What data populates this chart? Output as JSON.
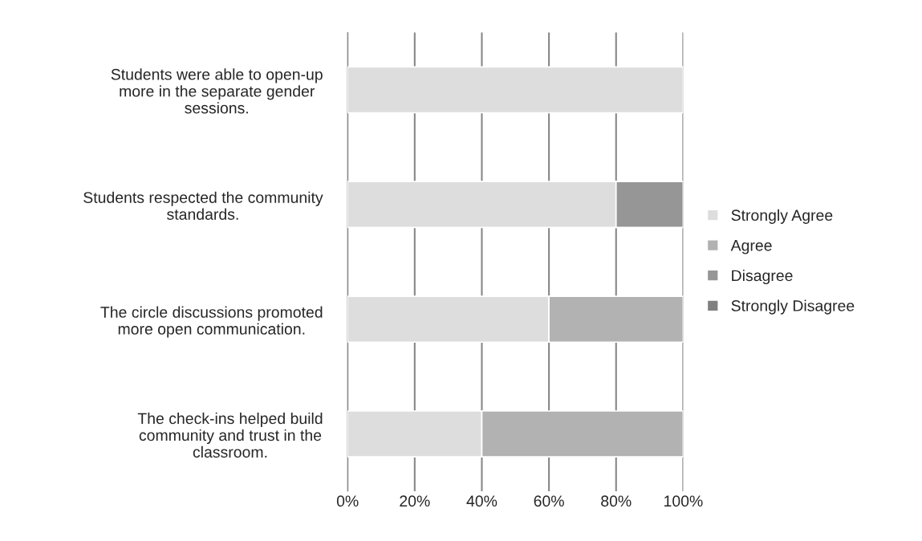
{
  "chart_data": {
    "type": "bar",
    "orientation": "horizontal",
    "stacked": true,
    "categories": [
      "Students were able to open-up more in the separate gender sessions.",
      "Students respected the community standards.",
      "The circle discussions promoted more open communication.",
      "The check-ins helped build community and trust in the classroom."
    ],
    "series": [
      {
        "name": "Strongly Agree",
        "color": "#dddddd",
        "values": [
          100,
          80,
          60,
          40
        ]
      },
      {
        "name": "Agree",
        "color": "#b2b2b2",
        "values": [
          0,
          0,
          40,
          60
        ]
      },
      {
        "name": "Disagree",
        "color": "#969696",
        "values": [
          0,
          20,
          0,
          0
        ]
      },
      {
        "name": "Strongly Disagree",
        "color": "#808080",
        "values": [
          0,
          0,
          0,
          0
        ]
      }
    ],
    "xlim": [
      0,
      100
    ],
    "xticks": [
      {
        "value": 0,
        "label": "0%"
      },
      {
        "value": 20,
        "label": "20%"
      },
      {
        "value": 40,
        "label": "40%"
      },
      {
        "value": 60,
        "label": "60%"
      },
      {
        "value": 80,
        "label": "80%"
      },
      {
        "value": 100,
        "label": "100%"
      }
    ],
    "grid": "x",
    "legend": "right"
  }
}
